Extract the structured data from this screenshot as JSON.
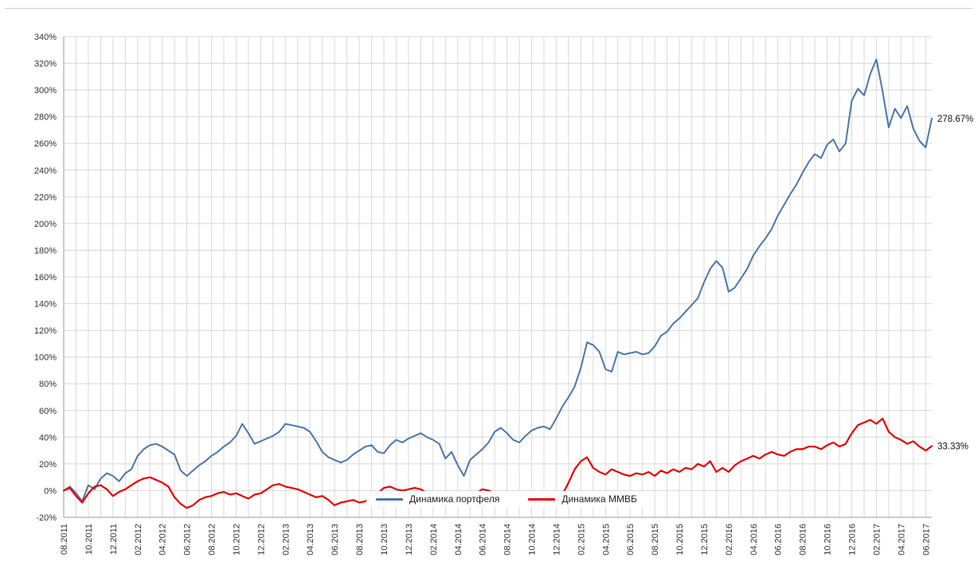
{
  "chart_data": {
    "type": "line",
    "title": "",
    "grid": true,
    "legend_position": "bottom-center-inside",
    "y_axis": {
      "min": -20,
      "max": 340,
      "step": 20,
      "tick_suffix": "%"
    },
    "x_tick_labels": [
      "08.2011",
      "10.2011",
      "12.2011",
      "02.2012",
      "04.2012",
      "06.2012",
      "08.2012",
      "10.2012",
      "12.2012",
      "02.2013",
      "04.2013",
      "06.2013",
      "08.2013",
      "10.2013",
      "12.2013",
      "02.2014",
      "04.2014",
      "06.2014",
      "08.2014",
      "10.2014",
      "12.2014",
      "02.2015",
      "04.2015",
      "06.2015",
      "08.2015",
      "10.2015",
      "12.2015",
      "02.2016",
      "04.2016",
      "06.2016",
      "08.2016",
      "10.2016",
      "12.2016",
      "02.2017",
      "04.2017",
      "06.2017"
    ],
    "points_per_month": 2,
    "series": [
      {
        "name": "Динамика портфеля",
        "color": "#4a77ad",
        "end_label": "278.67%",
        "end_value": 278.67,
        "values": [
          0,
          3,
          -2,
          -8,
          4,
          1,
          9,
          13,
          11,
          7,
          13,
          16,
          26,
          31,
          34,
          35,
          33,
          30,
          27,
          15,
          11,
          15,
          19,
          22,
          26,
          29,
          33,
          36,
          41,
          50,
          43,
          35,
          37,
          39,
          41,
          44,
          50,
          49,
          48,
          47,
          44,
          37,
          29,
          25,
          23,
          21,
          23,
          27,
          30,
          33,
          34,
          29,
          28,
          34,
          38,
          36,
          39,
          41,
          43,
          40,
          38,
          35,
          24,
          29,
          19,
          11,
          23,
          27,
          31,
          36,
          44,
          47,
          43,
          38,
          36,
          41,
          45,
          47,
          48,
          46,
          54,
          63,
          70,
          78,
          92,
          111,
          109,
          104,
          91,
          89,
          104,
          102,
          103,
          104,
          102,
          103,
          108,
          116,
          119,
          125,
          129,
          134,
          139,
          144,
          156,
          166,
          172,
          167,
          149,
          152,
          159,
          166,
          176,
          183,
          189,
          196,
          206,
          214,
          222,
          229,
          238,
          246,
          252,
          249,
          259,
          263,
          254,
          260,
          292,
          301,
          296,
          312,
          323,
          299,
          272,
          286,
          279,
          288,
          271,
          262,
          257,
          278.67
        ]
      },
      {
        "name": "Динамика ММВБ",
        "color": "#e60000",
        "end_label": "33.33%",
        "end_value": 33.33,
        "values": [
          0,
          2,
          -4,
          -9,
          -2,
          3,
          4,
          1,
          -4,
          -1,
          1,
          4,
          7,
          9,
          10,
          8,
          6,
          3,
          -5,
          -10,
          -13,
          -11,
          -7,
          -5,
          -4,
          -2,
          -1,
          -3,
          -2,
          -4,
          -6,
          -3,
          -2,
          1,
          4,
          5,
          3,
          2,
          1,
          -1,
          -3,
          -5,
          -4,
          -7,
          -11,
          -9,
          -8,
          -7,
          -9,
          -8,
          -4,
          -2,
          2,
          3,
          1,
          0,
          1,
          2,
          1,
          -2,
          -1,
          -3,
          -11,
          -7,
          -8,
          -9,
          -6,
          -2,
          1,
          0,
          -2,
          -5,
          -6,
          -4,
          -3,
          -5,
          -6,
          -4,
          -1,
          -2,
          -10,
          -3,
          6,
          16,
          22,
          25,
          17,
          14,
          12,
          16,
          14,
          12,
          11,
          13,
          12,
          14,
          11,
          15,
          13,
          16,
          14,
          17,
          16,
          20,
          18,
          22,
          14,
          17,
          14,
          19,
          22,
          24,
          26,
          24,
          27,
          29,
          27,
          26,
          29,
          31,
          31,
          33,
          33,
          31,
          34,
          36,
          33,
          35,
          43,
          49,
          51,
          53,
          50,
          54,
          44,
          40,
          38,
          35,
          37,
          33,
          30,
          33.33
        ]
      }
    ]
  }
}
